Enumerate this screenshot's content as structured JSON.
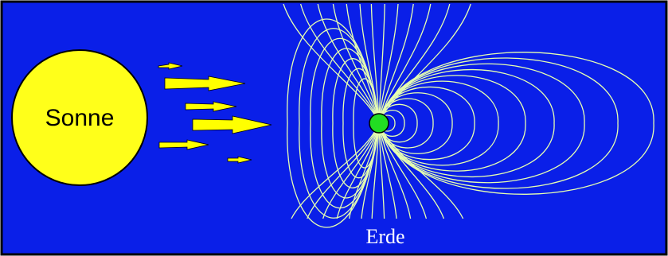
{
  "labels": {
    "sun": "Sonne",
    "earth": "Erde"
  },
  "colors": {
    "background": "#0a1fe8",
    "frame": "#000000",
    "sun": "#ffff1a",
    "sun_outline": "#000000",
    "solar_wind": "#ffff00",
    "field_lines": "#e6ffb0",
    "earth": "#22dd22"
  }
}
